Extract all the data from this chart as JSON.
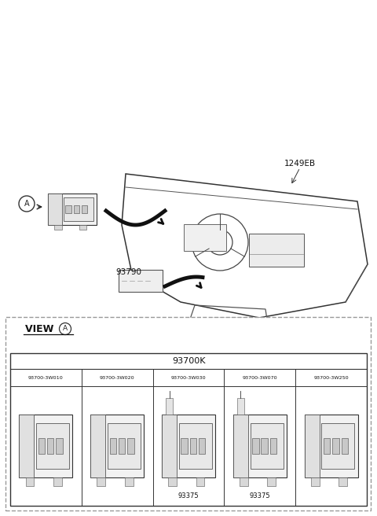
{
  "bg_color": "#ffffff",
  "fig_width": 4.8,
  "fig_height": 6.56,
  "dpi": 100,
  "top_label": "1249EB",
  "mid_label": "93790",
  "circle_label": "A",
  "view_title": "VIEW ",
  "table_main_label": "93700K",
  "part_numbers": [
    "93700-3W010",
    "93700-3W020",
    "93700-3W030",
    "93700-3W070",
    "93700-3W250"
  ],
  "sub_labels": [
    "",
    "",
    "93375",
    "93375",
    ""
  ],
  "outer_box_color": "#888888",
  "inner_box_color": "#000000"
}
